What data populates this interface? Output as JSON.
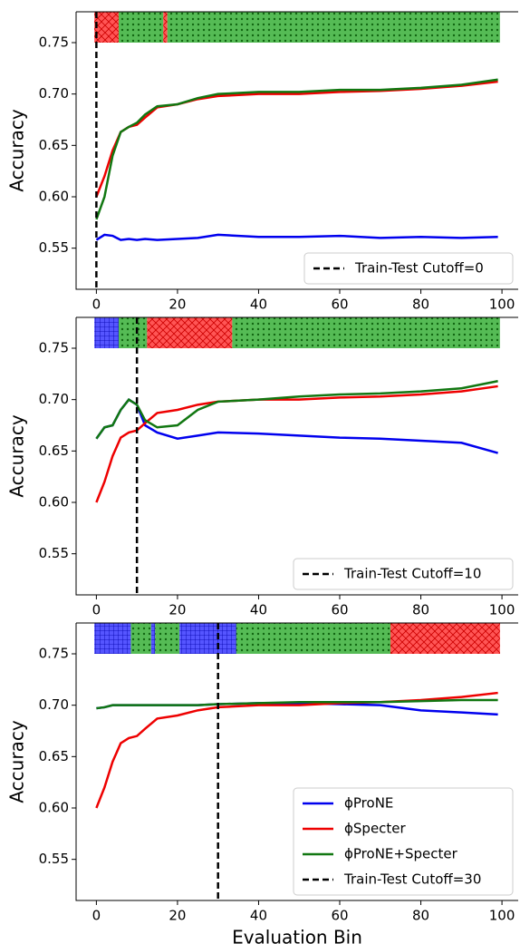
{
  "chart_data": [
    {
      "type": "line",
      "ylabel": "Accuracy",
      "xlim": [
        -5,
        104
      ],
      "ylim": [
        0.51,
        0.78
      ],
      "xticks": [
        0,
        20,
        40,
        60,
        80,
        100
      ],
      "yticks": [
        0.55,
        {
          "value": 0.6,
          "label": "0.60"
        },
        0.65,
        {
          "value": 0.7,
          "label": "0.70"
        },
        0.75
      ],
      "x": [
        0,
        2,
        4,
        6,
        8,
        10,
        12,
        15,
        20,
        25,
        30,
        40,
        50,
        60,
        70,
        80,
        90,
        99
      ],
      "series": [
        {
          "color": "#0000ee",
          "values": [
            0.558,
            0.563,
            0.562,
            0.558,
            0.559,
            0.558,
            0.559,
            0.558,
            0.559,
            0.56,
            0.563,
            0.561,
            0.561,
            0.562,
            0.56,
            0.561,
            0.56,
            0.561
          ]
        },
        {
          "color": "#ee0000",
          "values": [
            0.6,
            0.62,
            0.645,
            0.663,
            0.668,
            0.67,
            0.677,
            0.687,
            0.69,
            0.695,
            0.698,
            0.7,
            0.7,
            0.702,
            0.703,
            0.705,
            0.708,
            0.712
          ]
        },
        {
          "color": "#117711",
          "values": [
            0.578,
            0.6,
            0.64,
            0.663,
            0.668,
            0.672,
            0.68,
            0.688,
            0.69,
            0.696,
            0.7,
            0.702,
            0.702,
            0.704,
            0.704,
            0.706,
            0.709,
            0.714
          ]
        }
      ],
      "band_range": [
        0.75,
        0.78
      ],
      "segments": [
        {
          "start": -0.5,
          "end": 5.5,
          "color": "#ff5555",
          "hatch": "cross"
        },
        {
          "start": 5.5,
          "end": 16.5,
          "color": "#55bb55",
          "hatch": "dots"
        },
        {
          "start": 16.5,
          "end": 17.5,
          "color": "#ff5555",
          "hatch": "cross"
        },
        {
          "start": 17.5,
          "end": 99.5,
          "color": "#55bb55",
          "hatch": "dots"
        }
      ],
      "cutoff": 0,
      "cutoff_label": "Train-Test Cutoff=0",
      "legend": "lower right"
    },
    {
      "type": "line",
      "ylabel": "Accuracy",
      "xlim": [
        -5,
        104
      ],
      "ylim": [
        0.51,
        0.78
      ],
      "xticks": [
        0,
        20,
        40,
        60,
        80,
        100
      ],
      "yticks": [
        0.55,
        {
          "value": 0.6,
          "label": "0.60"
        },
        0.65,
        {
          "value": 0.7,
          "label": "0.70"
        },
        0.75
      ],
      "x": [
        0,
        2,
        4,
        6,
        8,
        10,
        12,
        15,
        20,
        25,
        30,
        40,
        50,
        60,
        70,
        80,
        90,
        99
      ],
      "series": [
        {
          "color": "#0000ee",
          "values": [
            0.662,
            0.673,
            0.675,
            0.69,
            0.7,
            0.695,
            0.675,
            0.668,
            0.662,
            0.665,
            0.668,
            0.667,
            0.665,
            0.663,
            0.662,
            0.66,
            0.658,
            0.648
          ]
        },
        {
          "color": "#ee0000",
          "values": [
            0.6,
            0.62,
            0.645,
            0.663,
            0.668,
            0.67,
            0.677,
            0.687,
            0.69,
            0.695,
            0.698,
            0.7,
            0.7,
            0.702,
            0.703,
            0.705,
            0.708,
            0.713
          ]
        },
        {
          "color": "#117711",
          "values": [
            0.662,
            0.673,
            0.675,
            0.69,
            0.7,
            0.695,
            0.68,
            0.673,
            0.675,
            0.69,
            0.698,
            0.7,
            0.703,
            0.705,
            0.706,
            0.708,
            0.711,
            0.718
          ]
        }
      ],
      "band_range": [
        0.75,
        0.78
      ],
      "segments": [
        {
          "start": -0.5,
          "end": 5.5,
          "color": "#5555ff",
          "hatch": "grid"
        },
        {
          "start": 5.5,
          "end": 12.5,
          "color": "#55bb55",
          "hatch": "dots"
        },
        {
          "start": 12.5,
          "end": 33.5,
          "color": "#ff5555",
          "hatch": "cross"
        },
        {
          "start": 33.5,
          "end": 99.5,
          "color": "#55bb55",
          "hatch": "dots"
        }
      ],
      "cutoff": 10,
      "cutoff_label": "Train-Test Cutoff=10",
      "legend": "lower right"
    },
    {
      "type": "line",
      "ylabel": "Accuracy",
      "xlabel": "Evaluation Bin",
      "xlim": [
        -5,
        104
      ],
      "ylim": [
        0.51,
        0.78
      ],
      "xticks": [
        0,
        20,
        40,
        60,
        80,
        100
      ],
      "yticks": [
        0.55,
        {
          "value": 0.6,
          "label": "0.60"
        },
        0.65,
        {
          "value": 0.7,
          "label": "0.70"
        },
        0.75
      ],
      "x": [
        0,
        2,
        4,
        6,
        8,
        10,
        12,
        15,
        20,
        25,
        30,
        40,
        50,
        60,
        70,
        80,
        90,
        99
      ],
      "series": [
        {
          "name": "ϕProNE",
          "color": "#0000ee",
          "values": [
            0.697,
            0.698,
            0.7,
            0.7,
            0.7,
            0.7,
            0.7,
            0.7,
            0.7,
            0.7,
            0.701,
            0.702,
            0.702,
            0.701,
            0.7,
            0.695,
            0.693,
            0.691
          ]
        },
        {
          "name": "ϕSpecter",
          "color": "#ee0000",
          "values": [
            0.6,
            0.62,
            0.645,
            0.663,
            0.668,
            0.67,
            0.677,
            0.687,
            0.69,
            0.695,
            0.698,
            0.7,
            0.7,
            0.702,
            0.703,
            0.705,
            0.708,
            0.712
          ]
        },
        {
          "name": "ϕProNE+Specter",
          "color": "#117711",
          "values": [
            0.697,
            0.698,
            0.7,
            0.7,
            0.7,
            0.7,
            0.7,
            0.7,
            0.7,
            0.7,
            0.701,
            0.702,
            0.703,
            0.703,
            0.703,
            0.704,
            0.705,
            0.705
          ]
        }
      ],
      "band_range": [
        0.75,
        0.78
      ],
      "segments": [
        {
          "start": -0.5,
          "end": 8.5,
          "color": "#5555ff",
          "hatch": "grid"
        },
        {
          "start": 8.5,
          "end": 13.5,
          "color": "#55bb55",
          "hatch": "dots"
        },
        {
          "start": 13.5,
          "end": 14.5,
          "color": "#5555ff",
          "hatch": "grid"
        },
        {
          "start": 14.5,
          "end": 20.5,
          "color": "#55bb55",
          "hatch": "dots"
        },
        {
          "start": 20.5,
          "end": 34.5,
          "color": "#5555ff",
          "hatch": "grid"
        },
        {
          "start": 34.5,
          "end": 72.5,
          "color": "#55bb55",
          "hatch": "dots"
        },
        {
          "start": 72.5,
          "end": 99.5,
          "color": "#ff5555",
          "hatch": "cross"
        }
      ],
      "cutoff": 30,
      "cutoff_label": "Train-Test Cutoff=30",
      "legend": "lower right"
    }
  ]
}
